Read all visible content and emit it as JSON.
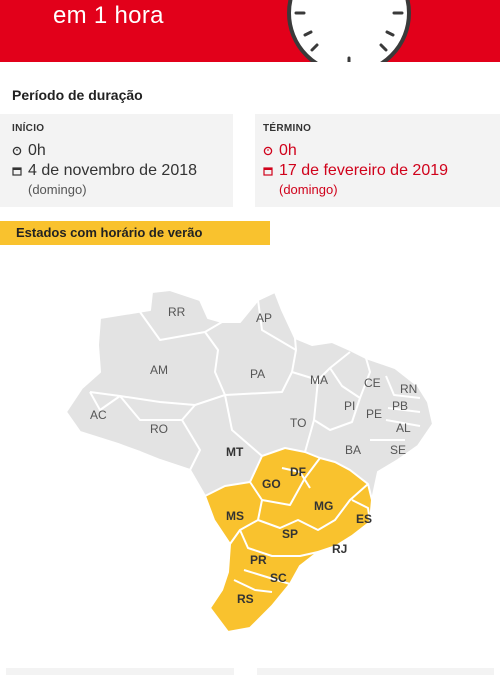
{
  "header": {
    "text": "em 1 hora",
    "accent_color": "#e2001a"
  },
  "section_title": "Período de duração",
  "start": {
    "heading": "INÍCIO",
    "time": "0h",
    "date": "4 de novembro de 2018",
    "weekday": "(domingo)",
    "icons": [
      "clock-icon",
      "calendar-icon"
    ]
  },
  "end": {
    "heading": "TÉRMINO",
    "time": "0h",
    "date": "17 de fevereiro de 2019",
    "weekday": "(domingo)",
    "color": "#d0021b",
    "icons": [
      "clock-icon",
      "calendar-icon"
    ]
  },
  "states_banner": {
    "label": "Estados com horário de verão",
    "color": "#f9c22e"
  },
  "map": {
    "highlight_color": "#f9c22e",
    "base_color": "#e3e3e3",
    "states": [
      {
        "code": "RR",
        "dst": false
      },
      {
        "code": "AP",
        "dst": false
      },
      {
        "code": "AM",
        "dst": false
      },
      {
        "code": "PA",
        "dst": false
      },
      {
        "code": "MA",
        "dst": false
      },
      {
        "code": "CE",
        "dst": false
      },
      {
        "code": "RN",
        "dst": false
      },
      {
        "code": "PB",
        "dst": false
      },
      {
        "code": "PI",
        "dst": false
      },
      {
        "code": "PE",
        "dst": false
      },
      {
        "code": "AC",
        "dst": false
      },
      {
        "code": "RO",
        "dst": false
      },
      {
        "code": "TO",
        "dst": false
      },
      {
        "code": "AL",
        "dst": false
      },
      {
        "code": "SE",
        "dst": false
      },
      {
        "code": "BA",
        "dst": false
      },
      {
        "code": "MT",
        "dst": false
      },
      {
        "code": "DF",
        "dst": true
      },
      {
        "code": "GO",
        "dst": true
      },
      {
        "code": "MG",
        "dst": true
      },
      {
        "code": "ES",
        "dst": true
      },
      {
        "code": "MS",
        "dst": true
      },
      {
        "code": "SP",
        "dst": true
      },
      {
        "code": "RJ",
        "dst": true
      },
      {
        "code": "PR",
        "dst": true
      },
      {
        "code": "SC",
        "dst": true
      },
      {
        "code": "RS",
        "dst": true
      }
    ]
  }
}
